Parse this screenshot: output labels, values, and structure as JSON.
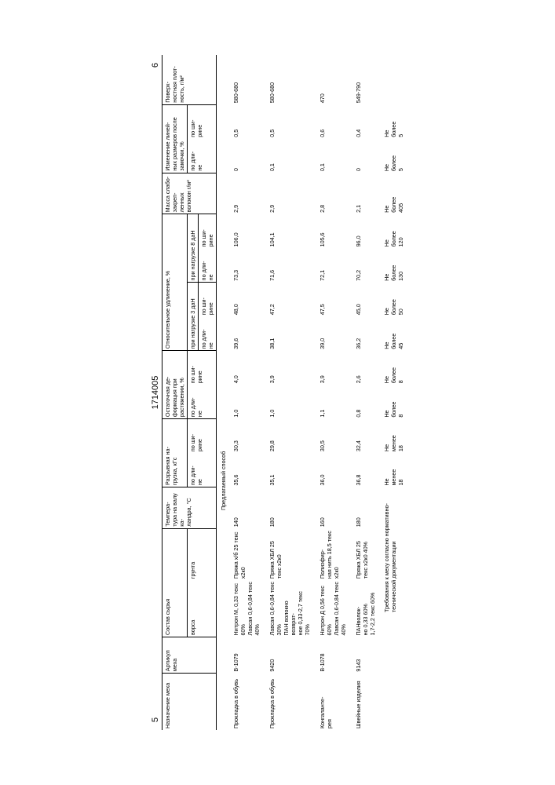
{
  "doc_number": "1714005",
  "page_left": "5",
  "page_right": "6",
  "headers": {
    "name": "Назначение меха",
    "article": "Артикул меха",
    "comp": "Состав сырья",
    "comp_vors": "ворса",
    "comp_grunt": "грунта",
    "temp": "Темпера-\nтура на валу ка-\nландра, °C",
    "break": "Разрывная на-\nгрузка, кГс",
    "len": "по дли-\nне",
    "wid": "по ши-\nрине",
    "resdef": "Остаточная де-\nформация при растяжении, %",
    "relel": "Относительное удлинение, %",
    "load3": "при нагрузке 3 даН",
    "load8": "при нагрузке 8 даН",
    "mass": "Масса слабо-\nзакреп-\nленных волокон г/м²",
    "dim": "Изменение линей-\nных размеров после замочки, %",
    "surf": "Поверх-\nностная плот-\nность, г/м²"
  },
  "method": "Предлагаемый способ",
  "rows": [
    {
      "name": "Прокладка в обувь",
      "art": "В-1079",
      "vors": "Нитрон М, 0,33 текс 60%\nЛавсан 0,6-0,84 текс 40%",
      "grunt": "Пряжа х/б 25 текс х2к0",
      "temp": "140",
      "b_l": "35,6",
      "b_w": "30,3",
      "rd_l": "1,0",
      "rd_w": "4,0",
      "e3_l": "39,6",
      "e3_w": "48,0",
      "e8_l": "73,3",
      "e8_w": "106,0",
      "mass": "2,9",
      "d_l": "0",
      "d_w": "0,5",
      "surf": "580-680"
    },
    {
      "name": "Прокладка в обувь",
      "art": "9420",
      "vors": "Лавсан 0,6-0,84 текс 30%\nПАН волокно возврат-\nное 0,33-2,7 текс 70%",
      "grunt": "Пряжа ХБЛ 25 текс х2к0",
      "temp": "180",
      "b_l": "35,1",
      "b_w": "29,8",
      "rd_l": "1,0",
      "rd_w": "3,9",
      "e3_l": "38,1",
      "e3_w": "47,2",
      "e8_l": "71,6",
      "e8_w": "104,1",
      "mass": "2,9",
      "d_l": "0,1",
      "d_w": "0,5",
      "surf": "580-680"
    },
    {
      "name": "Конгаланте-\nрея",
      "art": "В-1078",
      "vors": "Нитрон Д 0,56 текс 60%\nЛавсан 0,6-0,84 текс 40%",
      "grunt": "Полиэфир-\nная нить 18,5 текс х2к0",
      "temp": "160",
      "b_l": "36,0",
      "b_w": "30,5",
      "rd_l": "1,1",
      "rd_w": "3,9",
      "e3_l": "39,0",
      "e3_w": "47,5",
      "e8_l": "72,1",
      "e8_w": "105,6",
      "mass": "2,8",
      "d_l": "0,1",
      "d_w": "0,6",
      "surf": "470"
    },
    {
      "name": "Швейные изделия",
      "art": "9143",
      "vors": "ПАНволок-\nно 0,33 60%\n1,7-2,2 текс 60%",
      "grunt": "Пряжа ХБЛ 25 текс х2к0 40%",
      "temp": "180",
      "b_l": "36,8",
      "b_w": "32,4",
      "rd_l": "0,8",
      "rd_w": "2,6",
      "e3_l": "36,2",
      "e3_w": "45,0",
      "e8_l": "70,2",
      "e8_w": "96,0",
      "mass": "2,1",
      "d_l": "0",
      "d_w": "0,4",
      "surf": "549-790"
    }
  ],
  "req_label": "Требования к меху согласно нормативно-технической документации",
  "req": {
    "b_l": "Не\nменее\n18",
    "b_w": "Не\nменее\n18",
    "rd_l": "Не\nболее\n8",
    "rd_w": "Не\nболее\n8",
    "e3_l": "Не\nболее\n45",
    "e3_w": "Не\nболее\n50",
    "e8_l": "Не\nболее\n130",
    "e8_w": "Не\nболее\n120",
    "mass": "Не\nболее\n405",
    "d_l": "Не\nболее\n5",
    "d_w": "Не\nболее\n5"
  },
  "style": {
    "fg": "#000000",
    "bg": "#ffffff",
    "fontsize_pt": 7.2
  }
}
